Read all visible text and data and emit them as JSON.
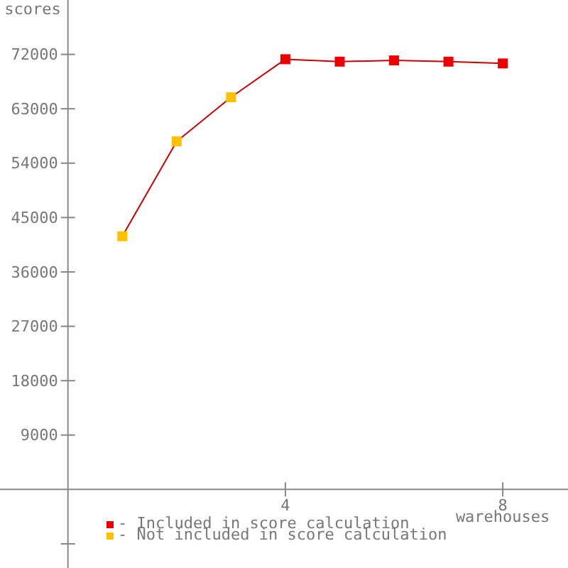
{
  "chart_data": {
    "type": "line",
    "xlabel": "warehouses",
    "ylabel": "scores",
    "x": [
      1,
      2,
      3,
      4,
      5,
      6,
      7,
      8
    ],
    "series": [
      {
        "marker": "none",
        "color": "#cc0000",
        "values": [
          41900,
          57600,
          64900,
          71200,
          70800,
          71000,
          70800,
          70500
        ]
      },
      {
        "type": "scatter",
        "name": "- Included in score calculation",
        "color": "#ee0000",
        "values": [
          null,
          null,
          null,
          71200,
          70800,
          71000,
          70800,
          70500
        ]
      },
      {
        "type": "scatter",
        "name": "- Not included in score calculation",
        "color": "#ffc000",
        "values": [
          41900,
          57600,
          64900,
          null,
          null,
          null,
          null,
          null
        ]
      }
    ],
    "xlim": [
      -1.25,
      9.2
    ],
    "xticks": [
      4,
      8
    ],
    "ylim": [
      -13000,
      81000
    ],
    "yticks": [
      {
        "value": -9000,
        "label": null
      },
      9000,
      18000,
      27000,
      36000,
      45000,
      54000,
      63000,
      72000
    ],
    "marker": "square",
    "legend": "bottom left",
    "grid": false
  }
}
